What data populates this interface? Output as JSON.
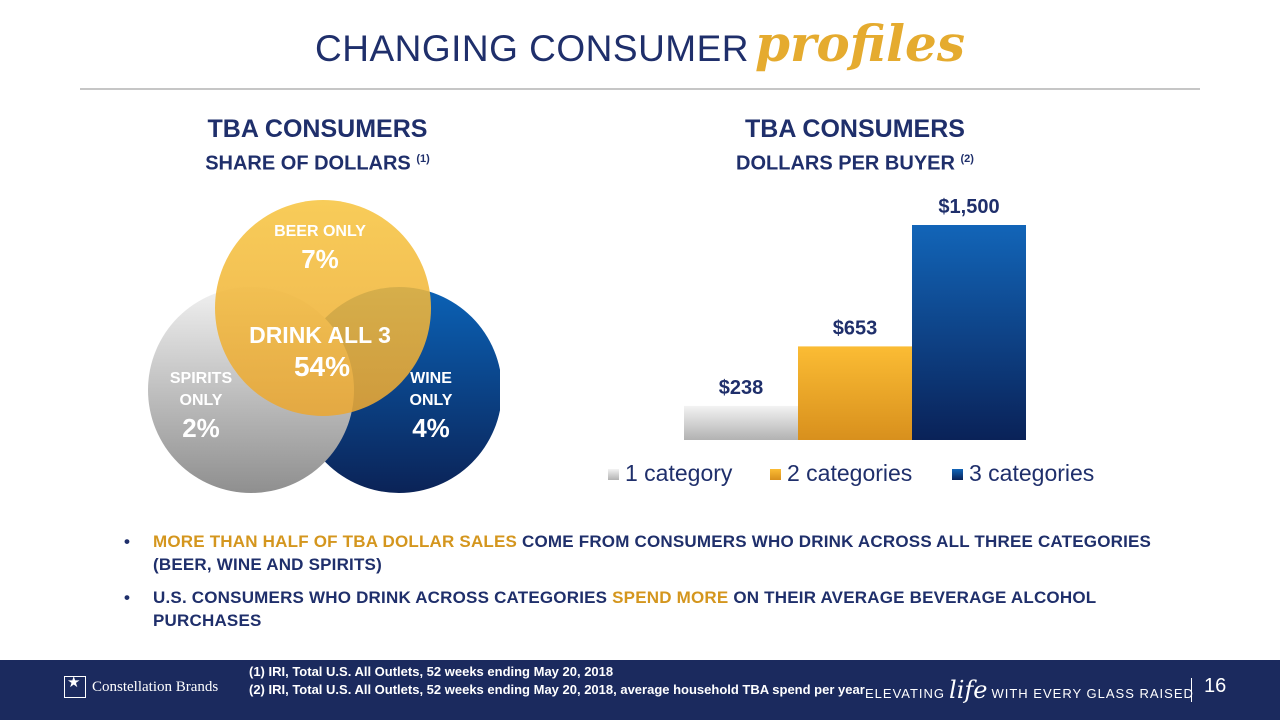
{
  "title": {
    "plain": "CHANGING CONSUMER",
    "script": "profiles"
  },
  "left_panel": {
    "heading": "TBA CONSUMERS",
    "subheading": "SHARE OF DOLLARS",
    "footnote": "(1)"
  },
  "right_panel": {
    "heading": "TBA CONSUMERS",
    "subheading": "DOLLARS PER BUYER",
    "footnote": "(2)"
  },
  "venn": {
    "beer": {
      "label": "BEER ONLY",
      "value": "7%"
    },
    "spirits": {
      "label_line1": "SPIRITS",
      "label_line2": "ONLY",
      "value": "2%"
    },
    "wine": {
      "label_line1": "WINE",
      "label_line2": "ONLY",
      "value": "4%"
    },
    "center": {
      "label": "DRINK ALL 3",
      "value": "54%"
    }
  },
  "chart_data": {
    "type": "bar",
    "categories": [
      "1 category",
      "2 categories",
      "3 categories"
    ],
    "values": [
      238,
      653,
      1500
    ],
    "labels": [
      "$238",
      "$653",
      "$1,500"
    ],
    "colors": [
      "#b9b9b9",
      "#f0a91f",
      "#0c3e8e"
    ],
    "title": "TBA CONSUMERS DOLLARS PER BUYER",
    "legend": "bottom",
    "grid": false
  },
  "bullets": [
    {
      "highlight": "MORE THAN HALF OF TBA DOLLAR SALES",
      "text": " COME FROM CONSUMERS WHO DRINK ACROSS ALL THREE CATEGORIES (BEER, WINE AND SPIRITS)"
    },
    {
      "before": "U.S. CONSUMERS WHO DRINK ACROSS CATEGORIES ",
      "highlight": "SPEND MORE",
      "after": " ON THEIR AVERAGE BEVERAGE ALCOHOL PURCHASES"
    }
  ],
  "footer": {
    "company": "Constellation Brands",
    "source1": "(1) IRI, Total U.S. All Outlets, 52 weeks ending May 20, 2018",
    "source2": "(2) IRI, Total U.S. All Outlets, 52 weeks ending May 20, 2018, average household TBA spend per year",
    "tagline_pre": "ELEVATING",
    "tagline_life": "life",
    "tagline_post": "WITH EVERY GLASS RAISED",
    "page": "16"
  },
  "colors": {
    "navy": "#1f2f6b",
    "gold": "#e5ab2f",
    "footer": "#1b2a5e"
  }
}
